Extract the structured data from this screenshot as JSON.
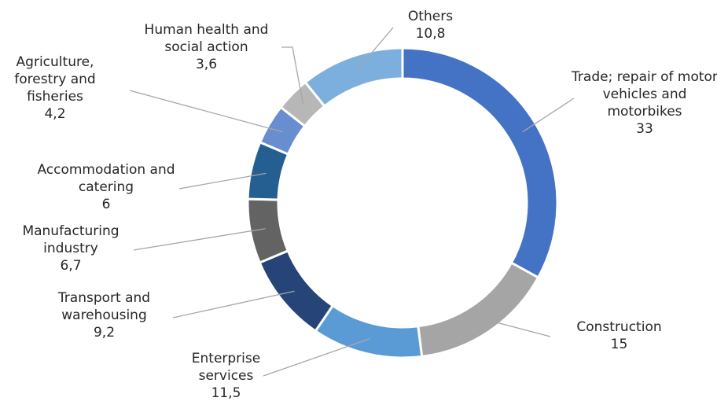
{
  "chart_data": {
    "type": "pie",
    "donut": true,
    "categories": [
      "Trade; repair of motor vehicles and motorbikes",
      "Construction",
      "Enterprise services",
      "Transport and warehousing",
      "Manufacturing industry",
      "Accommodation and catering",
      "Agriculture, forestry and fisheries",
      "Human health and social action",
      "Others"
    ],
    "values": [
      33,
      15,
      11.5,
      9.2,
      6.7,
      6,
      4.2,
      3.6,
      10.8
    ],
    "value_labels": [
      "33",
      "15",
      "11,5",
      "9,2",
      "6,7",
      "6",
      "4,2",
      "3,6",
      "10,8"
    ],
    "colors": [
      "#4472c4",
      "#a5a5a5",
      "#5b9bd5",
      "#264478",
      "#636363",
      "#255e91",
      "#698ed0",
      "#b7b7b7",
      "#7cafdd"
    ]
  }
}
